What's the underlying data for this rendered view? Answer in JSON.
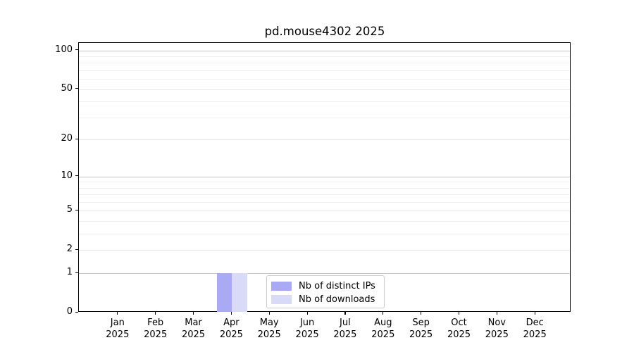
{
  "chart_data": {
    "type": "bar",
    "title": "pd.mouse4302 2025",
    "categories": [
      "Jan",
      "Feb",
      "Mar",
      "Apr",
      "May",
      "Jun",
      "Jul",
      "Aug",
      "Sep",
      "Oct",
      "Nov",
      "Dec"
    ],
    "category_year": "2025",
    "series": [
      {
        "name": "Nb of distinct IPs",
        "color": "#a9a9f4",
        "values": [
          0,
          0,
          0,
          1,
          0,
          0,
          0,
          0,
          0,
          0,
          0,
          0
        ]
      },
      {
        "name": "Nb of downloads",
        "color": "#d9d9f8",
        "values": [
          0,
          0,
          0,
          1,
          0,
          0,
          0,
          0,
          0,
          0,
          0,
          0
        ]
      }
    ],
    "yscale": "log1p",
    "y_ticks": [
      0,
      1,
      2,
      5,
      10,
      20,
      50,
      100
    ],
    "y_minor_ticks": [
      3,
      4,
      6,
      7,
      8,
      9,
      30,
      40,
      60,
      70,
      80,
      90
    ],
    "ylim": [
      0,
      113
    ],
    "grid": "horizontal",
    "legend_position": "lower-center-inside"
  },
  "colors": {
    "grid_major": "#c6c6c6",
    "grid_minor": "#f0f0f0",
    "axis": "#000000",
    "legend_border": "#cccccc",
    "background": "#ffffff"
  }
}
